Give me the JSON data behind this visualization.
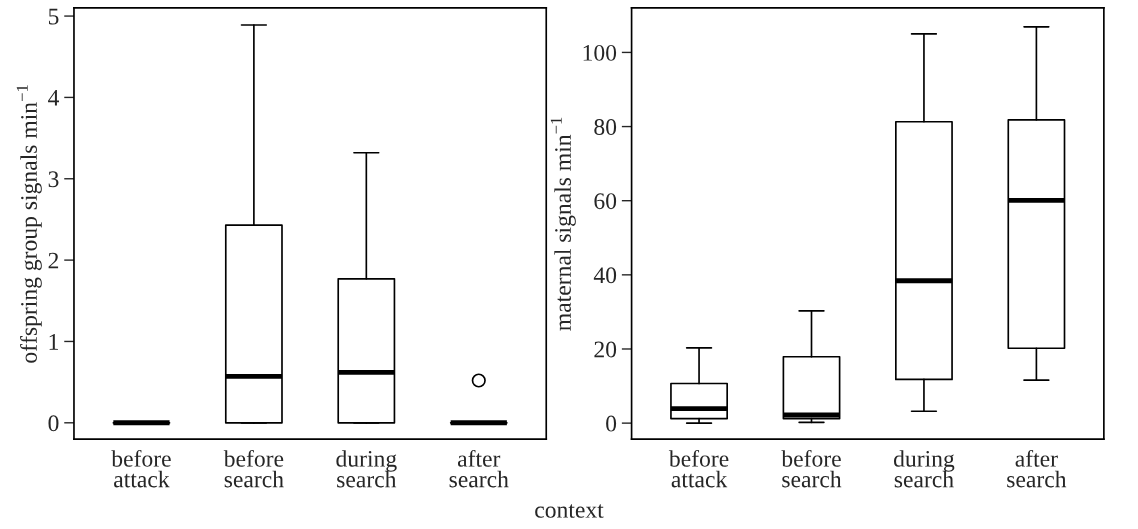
{
  "chart_data": [
    {
      "type": "box",
      "ylabel": "offspring group signals min$^{−1}$",
      "xlabel": "context",
      "categories": [
        "before\nattack",
        "before\nsearch",
        "during\nsearch",
        "after\nsearch"
      ],
      "ylim": [
        -0.2,
        5.1
      ],
      "yticks": [
        0,
        1,
        2,
        3,
        4,
        5
      ],
      "grid": false,
      "boxes": [
        {
          "low": 0,
          "q1": 0,
          "median": 0,
          "q3": 0,
          "high": 0
        },
        {
          "low": 0,
          "q1": 0,
          "median": 0.57,
          "q3": 2.43,
          "high": 4.89
        },
        {
          "low": 0,
          "q1": 0,
          "median": 0.62,
          "q3": 1.77,
          "high": 3.32
        },
        {
          "low": 0,
          "q1": 0,
          "median": 0,
          "q3": 0,
          "high": 0,
          "outliers": [
            0.52
          ]
        }
      ]
    },
    {
      "type": "box",
      "ylabel": "maternal signals min$^{−1}$",
      "categories": [
        "before\nattack",
        "before\nsearch",
        "during\nsearch",
        "after\nsearch"
      ],
      "ylim": [
        -4.3,
        112
      ],
      "yticks": [
        0,
        20,
        40,
        60,
        80,
        100
      ],
      "grid": false,
      "boxes": [
        {
          "low": 0,
          "q1": 1.2,
          "median": 3.9,
          "q3": 10.7,
          "high": 20.3
        },
        {
          "low": 0.2,
          "q1": 1.2,
          "median": 2.2,
          "q3": 17.9,
          "high": 30.3
        },
        {
          "low": 3.2,
          "q1": 11.8,
          "median": 38.4,
          "q3": 81.3,
          "high": 105
        },
        {
          "low": 11.6,
          "q1": 20.2,
          "median": 60.1,
          "q3": 81.8,
          "high": 106.9
        }
      ]
    }
  ]
}
